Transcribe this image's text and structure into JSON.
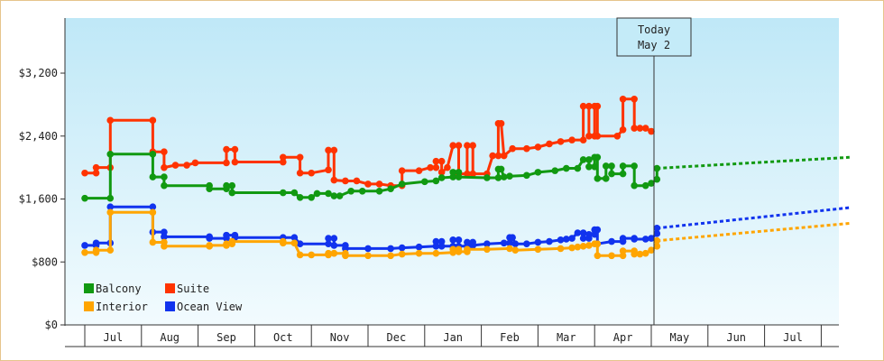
{
  "chart_data": {
    "type": "line",
    "title": "",
    "xlabel": "",
    "ylabel": "",
    "ylim": [
      0,
      3900
    ],
    "y_ticks": [
      {
        "value": 0,
        "label": "$0"
      },
      {
        "value": 800,
        "label": "$800"
      },
      {
        "value": 1600,
        "label": "$1,600"
      },
      {
        "value": 2400,
        "label": "$2,400"
      },
      {
        "value": 3200,
        "label": "$3,200"
      }
    ],
    "x_range": [
      0,
      13.5
    ],
    "months": [
      "Jul",
      "Aug",
      "Sep",
      "Oct",
      "Nov",
      "Dec",
      "Jan",
      "Feb",
      "Mar",
      "Apr",
      "May",
      "Jun",
      "Jul"
    ],
    "today": {
      "x": 10.0,
      "line1": "Today",
      "line2": "May 2"
    },
    "colors": {
      "Balcony": "#119911",
      "Suite": "#ff3300",
      "Interior": "#ffa500",
      "Ocean View": "#1133ee"
    },
    "legend": [
      "Balcony",
      "Suite",
      "Interior",
      "Ocean View"
    ],
    "series": [
      {
        "name": "Suite",
        "points": [
          [
            0,
            1930
          ],
          [
            0.2,
            1930
          ],
          [
            0.2,
            2000
          ],
          [
            0.45,
            2000
          ],
          [
            0.45,
            2600
          ],
          [
            1.2,
            2600
          ],
          [
            1.2,
            2200
          ],
          [
            1.4,
            2200
          ],
          [
            1.4,
            2000
          ],
          [
            1.6,
            2030
          ],
          [
            1.8,
            2030
          ],
          [
            1.95,
            2060
          ],
          [
            2.5,
            2060
          ],
          [
            2.5,
            2230
          ],
          [
            2.65,
            2230
          ],
          [
            2.65,
            2070
          ],
          [
            3.5,
            2070
          ],
          [
            3.5,
            2130
          ],
          [
            3.8,
            2130
          ],
          [
            3.8,
            1930
          ],
          [
            4.0,
            1930
          ],
          [
            4.3,
            1970
          ],
          [
            4.3,
            2220
          ],
          [
            4.4,
            2220
          ],
          [
            4.4,
            1840
          ],
          [
            4.6,
            1830
          ],
          [
            4.8,
            1830
          ],
          [
            5.0,
            1790
          ],
          [
            5.2,
            1790
          ],
          [
            5.4,
            1770
          ],
          [
            5.6,
            1770
          ],
          [
            5.6,
            1960
          ],
          [
            5.9,
            1960
          ],
          [
            6.1,
            2000
          ],
          [
            6.2,
            2000
          ],
          [
            6.2,
            2080
          ],
          [
            6.3,
            2080
          ],
          [
            6.3,
            1940
          ],
          [
            6.4,
            2000
          ],
          [
            6.5,
            2280
          ],
          [
            6.6,
            2280
          ],
          [
            6.6,
            1920
          ],
          [
            6.75,
            1920
          ],
          [
            6.75,
            2280
          ],
          [
            6.85,
            2280
          ],
          [
            6.85,
            1920
          ],
          [
            7.1,
            1920
          ],
          [
            7.2,
            2150
          ],
          [
            7.3,
            2150
          ],
          [
            7.3,
            2560
          ],
          [
            7.35,
            2560
          ],
          [
            7.4,
            2150
          ],
          [
            7.55,
            2240
          ],
          [
            7.8,
            2240
          ],
          [
            8.0,
            2260
          ],
          [
            8.2,
            2300
          ],
          [
            8.4,
            2330
          ],
          [
            8.6,
            2350
          ],
          [
            8.8,
            2350
          ],
          [
            8.8,
            2780
          ],
          [
            8.9,
            2780
          ],
          [
            8.9,
            2400
          ],
          [
            9.0,
            2400
          ],
          [
            9.0,
            2780
          ],
          [
            9.05,
            2780
          ],
          [
            9.05,
            2400
          ],
          [
            9.4,
            2400
          ],
          [
            9.5,
            2480
          ],
          [
            9.5,
            2870
          ],
          [
            9.7,
            2870
          ],
          [
            9.7,
            2500
          ],
          [
            9.8,
            2500
          ],
          [
            9.9,
            2500
          ],
          [
            10.0,
            2460
          ]
        ],
        "projection": []
      },
      {
        "name": "Balcony",
        "points": [
          [
            0,
            1610
          ],
          [
            0.45,
            1610
          ],
          [
            0.45,
            2170
          ],
          [
            1.2,
            2170
          ],
          [
            1.2,
            1880
          ],
          [
            1.4,
            1880
          ],
          [
            1.4,
            1770
          ],
          [
            2.2,
            1770
          ],
          [
            2.2,
            1730
          ],
          [
            2.5,
            1730
          ],
          [
            2.5,
            1770
          ],
          [
            2.6,
            1770
          ],
          [
            2.6,
            1680
          ],
          [
            3.5,
            1680
          ],
          [
            3.7,
            1680
          ],
          [
            3.8,
            1620
          ],
          [
            4.0,
            1620
          ],
          [
            4.1,
            1670
          ],
          [
            4.3,
            1670
          ],
          [
            4.4,
            1640
          ],
          [
            4.5,
            1640
          ],
          [
            4.7,
            1700
          ],
          [
            4.9,
            1700
          ],
          [
            5.2,
            1700
          ],
          [
            5.4,
            1730
          ],
          [
            5.6,
            1790
          ],
          [
            6.0,
            1820
          ],
          [
            6.2,
            1830
          ],
          [
            6.3,
            1870
          ],
          [
            6.5,
            1880
          ],
          [
            6.5,
            1940
          ],
          [
            6.6,
            1940
          ],
          [
            6.6,
            1880
          ],
          [
            7.1,
            1870
          ],
          [
            7.3,
            1870
          ],
          [
            7.3,
            1980
          ],
          [
            7.35,
            1980
          ],
          [
            7.4,
            1880
          ],
          [
            7.5,
            1890
          ],
          [
            7.8,
            1900
          ],
          [
            8.0,
            1940
          ],
          [
            8.3,
            1960
          ],
          [
            8.5,
            1990
          ],
          [
            8.7,
            1990
          ],
          [
            8.8,
            2100
          ],
          [
            8.9,
            2100
          ],
          [
            8.9,
            2010
          ],
          [
            9.0,
            2010
          ],
          [
            9.0,
            2130
          ],
          [
            9.05,
            2130
          ],
          [
            9.05,
            1860
          ],
          [
            9.2,
            1860
          ],
          [
            9.2,
            2020
          ],
          [
            9.3,
            2020
          ],
          [
            9.3,
            1920
          ],
          [
            9.5,
            1920
          ],
          [
            9.5,
            2020
          ],
          [
            9.7,
            2020
          ],
          [
            9.7,
            1770
          ],
          [
            9.9,
            1770
          ],
          [
            10.0,
            1800
          ],
          [
            10.1,
            1850
          ],
          [
            10.1,
            1990
          ]
        ],
        "projection": [
          [
            10.1,
            1990
          ],
          [
            13.5,
            2130
          ]
        ]
      },
      {
        "name": "Ocean View",
        "points": [
          [
            0,
            1010
          ],
          [
            0.2,
            1010
          ],
          [
            0.2,
            1040
          ],
          [
            0.45,
            1040
          ],
          [
            0.45,
            1500
          ],
          [
            1.2,
            1500
          ],
          [
            1.2,
            1180
          ],
          [
            1.4,
            1180
          ],
          [
            1.4,
            1120
          ],
          [
            2.2,
            1120
          ],
          [
            2.2,
            1100
          ],
          [
            2.5,
            1100
          ],
          [
            2.5,
            1140
          ],
          [
            2.65,
            1140
          ],
          [
            2.65,
            1110
          ],
          [
            3.5,
            1110
          ],
          [
            3.7,
            1110
          ],
          [
            3.8,
            1030
          ],
          [
            4.3,
            1030
          ],
          [
            4.3,
            1100
          ],
          [
            4.4,
            1100
          ],
          [
            4.4,
            1010
          ],
          [
            4.6,
            1010
          ],
          [
            4.6,
            970
          ],
          [
            5.0,
            970
          ],
          [
            5.4,
            970
          ],
          [
            5.6,
            980
          ],
          [
            5.9,
            990
          ],
          [
            6.2,
            1000
          ],
          [
            6.2,
            1060
          ],
          [
            6.3,
            1060
          ],
          [
            6.3,
            1000
          ],
          [
            6.5,
            1000
          ],
          [
            6.5,
            1080
          ],
          [
            6.6,
            1080
          ],
          [
            6.6,
            1000
          ],
          [
            6.75,
            1000
          ],
          [
            6.75,
            1050
          ],
          [
            6.85,
            1050
          ],
          [
            6.85,
            1010
          ],
          [
            7.1,
            1030
          ],
          [
            7.4,
            1040
          ],
          [
            7.5,
            1040
          ],
          [
            7.5,
            1110
          ],
          [
            7.55,
            1110
          ],
          [
            7.6,
            1030
          ],
          [
            7.8,
            1030
          ],
          [
            8.0,
            1050
          ],
          [
            8.2,
            1060
          ],
          [
            8.4,
            1080
          ],
          [
            8.5,
            1090
          ],
          [
            8.6,
            1100
          ],
          [
            8.7,
            1170
          ],
          [
            8.8,
            1170
          ],
          [
            8.8,
            1100
          ],
          [
            8.9,
            1100
          ],
          [
            8.9,
            1150
          ],
          [
            9.0,
            1150
          ],
          [
            9.0,
            1210
          ],
          [
            9.05,
            1210
          ],
          [
            9.05,
            1030
          ],
          [
            9.3,
            1060
          ],
          [
            9.5,
            1060
          ],
          [
            9.5,
            1100
          ],
          [
            9.7,
            1100
          ],
          [
            9.7,
            1090
          ],
          [
            9.9,
            1090
          ],
          [
            10.0,
            1100
          ],
          [
            10.1,
            1160
          ],
          [
            10.1,
            1230
          ]
        ],
        "projection": [
          [
            10.1,
            1230
          ],
          [
            13.5,
            1490
          ]
        ]
      },
      {
        "name": "Interior",
        "points": [
          [
            0,
            920
          ],
          [
            0.2,
            920
          ],
          [
            0.2,
            950
          ],
          [
            0.45,
            950
          ],
          [
            0.45,
            1430
          ],
          [
            1.2,
            1430
          ],
          [
            1.2,
            1050
          ],
          [
            1.4,
            1050
          ],
          [
            1.4,
            1000
          ],
          [
            2.2,
            1000
          ],
          [
            2.2,
            1010
          ],
          [
            2.5,
            1010
          ],
          [
            2.5,
            1030
          ],
          [
            2.6,
            1030
          ],
          [
            2.6,
            1060
          ],
          [
            3.5,
            1060
          ],
          [
            3.5,
            1040
          ],
          [
            3.7,
            1040
          ],
          [
            3.8,
            890
          ],
          [
            4.0,
            890
          ],
          [
            4.3,
            890
          ],
          [
            4.3,
            910
          ],
          [
            4.4,
            910
          ],
          [
            4.4,
            910
          ],
          [
            4.6,
            910
          ],
          [
            4.6,
            880
          ],
          [
            5.0,
            880
          ],
          [
            5.4,
            880
          ],
          [
            5.6,
            900
          ],
          [
            5.9,
            910
          ],
          [
            6.2,
            910
          ],
          [
            6.5,
            920
          ],
          [
            6.5,
            960
          ],
          [
            6.6,
            960
          ],
          [
            6.6,
            930
          ],
          [
            6.75,
            930
          ],
          [
            6.75,
            960
          ],
          [
            7.1,
            960
          ],
          [
            7.5,
            970
          ],
          [
            7.6,
            950
          ],
          [
            8.0,
            960
          ],
          [
            8.4,
            970
          ],
          [
            8.6,
            980
          ],
          [
            8.7,
            990
          ],
          [
            8.8,
            1000
          ],
          [
            8.9,
            1010
          ],
          [
            9.0,
            1030
          ],
          [
            9.05,
            1030
          ],
          [
            9.05,
            880
          ],
          [
            9.3,
            880
          ],
          [
            9.5,
            880
          ],
          [
            9.5,
            940
          ],
          [
            9.7,
            940
          ],
          [
            9.7,
            900
          ],
          [
            9.8,
            900
          ],
          [
            9.9,
            910
          ],
          [
            10.0,
            950
          ],
          [
            10.1,
            1000
          ],
          [
            10.1,
            1070
          ]
        ],
        "projection": [
          [
            10.1,
            1070
          ],
          [
            13.5,
            1290
          ]
        ]
      }
    ]
  }
}
